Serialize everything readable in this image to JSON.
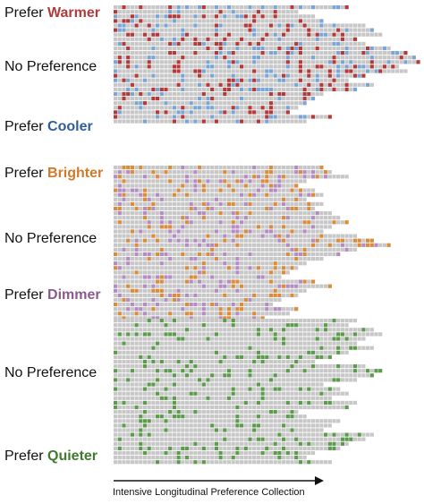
{
  "chart_data": {
    "type": "heatmap",
    "xlabel": "Intensive Longitudinal Preference Collection",
    "legend": "inline-left",
    "colors": {
      "none": "#c7c7c7",
      "warmer": "#b23a3a",
      "cooler": "#7aa6d6",
      "brighter": "#d88c3c",
      "dimmer": "#b48cc4",
      "quieter": "#5c9a4c"
    },
    "labels": [
      {
        "prefix": "Prefer ",
        "emphasis": "Warmer",
        "color": "#b23a3a"
      },
      {
        "prefix": "",
        "emphasis": "No Preference",
        "color": ""
      },
      {
        "prefix": "Prefer ",
        "emphasis": "Cooler",
        "color": "#2f5f9a"
      },
      {
        "prefix": "Prefer ",
        "emphasis": "Brighter",
        "color": "#d07a2a"
      },
      {
        "prefix": "",
        "emphasis": "No Preference",
        "color": ""
      },
      {
        "prefix": "Prefer ",
        "emphasis": "Dimmer",
        "color": "#8a5a8e"
      },
      {
        "prefix": "",
        "emphasis": "No Preference",
        "color": ""
      },
      {
        "prefix": "Prefer ",
        "emphasis": "Quieter",
        "color": "#3f7a2e"
      }
    ],
    "blocks": [
      {
        "name": "thermal",
        "palette": [
          "warmer",
          "cooler"
        ],
        "rows": [
          56,
          44,
          48,
          50,
          60,
          62,
          64,
          58,
          60,
          66,
          70,
          72,
          74,
          68,
          70,
          60,
          56,
          62,
          58,
          50,
          48,
          46,
          44,
          42,
          52,
          46
        ]
      },
      {
        "name": "light",
        "palette": [
          "brighter",
          "dimmer"
        ],
        "rows": [
          50,
          52,
          56,
          46,
          44,
          48,
          50,
          46,
          50,
          48,
          52,
          54,
          56,
          52,
          50,
          58,
          62,
          66,
          58,
          54,
          50,
          46,
          44,
          42,
          40,
          48,
          52,
          46,
          44,
          40,
          38,
          44,
          42,
          36
        ]
      },
      {
        "name": "noise",
        "palette": [
          "quieter"
        ],
        "rows": [
          58,
          56,
          62,
          64,
          60,
          58,
          62,
          56,
          52,
          48,
          60,
          64,
          62,
          58,
          50,
          54,
          56,
          52,
          58,
          56,
          44,
          46,
          54,
          52,
          50,
          62,
          60,
          56,
          54,
          48,
          46,
          52
        ]
      }
    ]
  }
}
